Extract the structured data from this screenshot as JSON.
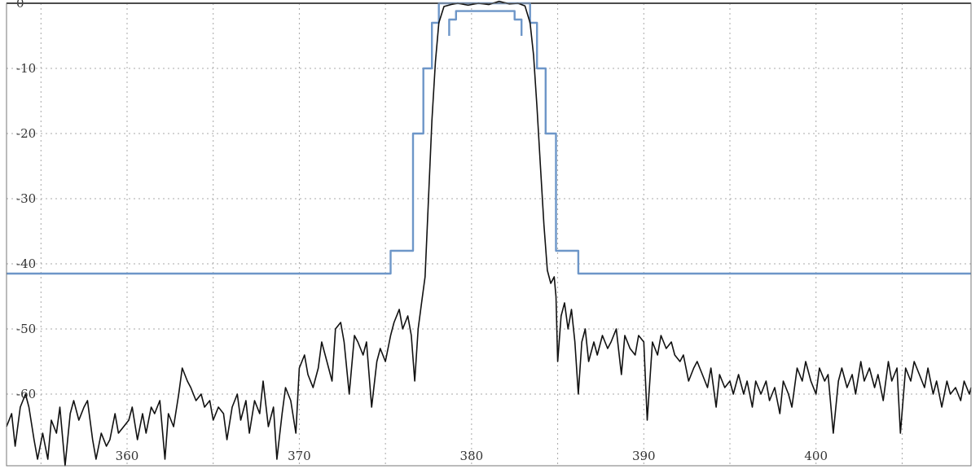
{
  "chart_data": {
    "type": "line",
    "title": "",
    "xlabel": "",
    "ylabel": "",
    "xlim": [
      353,
      409
    ],
    "ylim": [
      -71,
      0
    ],
    "grid": true,
    "legend": "none",
    "x_ticks": [
      {
        "value": 355,
        "label": ""
      },
      {
        "value": 360,
        "label": "360"
      },
      {
        "value": 365,
        "label": ""
      },
      {
        "value": 370,
        "label": "370"
      },
      {
        "value": 375,
        "label": ""
      },
      {
        "value": 380,
        "label": "380"
      },
      {
        "value": 385,
        "label": ""
      },
      {
        "value": 390,
        "label": "390"
      },
      {
        "value": 395,
        "label": ""
      },
      {
        "value": 400,
        "label": "400"
      },
      {
        "value": 405,
        "label": ""
      }
    ],
    "y_ticks": [
      {
        "value": 0,
        "label": "0"
      },
      {
        "value": -10,
        "label": "-10"
      },
      {
        "value": -20,
        "label": "-20"
      },
      {
        "value": -30,
        "label": "-30"
      },
      {
        "value": -40,
        "label": "-40"
      },
      {
        "value": -50,
        "label": "-50"
      },
      {
        "value": -60,
        "label": "-60"
      }
    ],
    "colors": {
      "spectrum": "#111111",
      "mask": "#6d96c8",
      "reference": "#222222"
    },
    "reference_line": {
      "y": 0
    },
    "series": [
      {
        "id": "mask-outer",
        "color": "#6d96c8",
        "step": true,
        "points": [
          [
            353,
            -41.5
          ],
          [
            375.3,
            -41.5
          ],
          [
            375.3,
            -38
          ],
          [
            376.6,
            -38
          ],
          [
            376.6,
            -20
          ],
          [
            377.2,
            -20
          ],
          [
            377.2,
            -10
          ],
          [
            377.7,
            -10
          ],
          [
            377.7,
            -3
          ],
          [
            378.1,
            -3
          ],
          [
            378.1,
            0
          ],
          [
            383.4,
            0
          ],
          [
            383.4,
            -3
          ],
          [
            383.8,
            -3
          ],
          [
            383.8,
            -10
          ],
          [
            384.3,
            -10
          ],
          [
            384.3,
            -20
          ],
          [
            384.9,
            -20
          ],
          [
            384.9,
            -38
          ],
          [
            386.2,
            -38
          ],
          [
            386.2,
            -41.5
          ],
          [
            409,
            -41.5
          ]
        ]
      },
      {
        "id": "mask-inner",
        "color": "#6d96c8",
        "step": true,
        "points": [
          [
            378.7,
            -5
          ],
          [
            378.7,
            -2.5
          ],
          [
            379.1,
            -2.5
          ],
          [
            379.1,
            -1.2
          ],
          [
            382.5,
            -1.2
          ],
          [
            382.5,
            -2.5
          ],
          [
            382.9,
            -2.5
          ],
          [
            382.9,
            -5
          ]
        ]
      },
      {
        "id": "spectrum",
        "color": "#111111",
        "points": [
          [
            353.0,
            -65
          ],
          [
            353.3,
            -63
          ],
          [
            353.5,
            -68
          ],
          [
            353.8,
            -62
          ],
          [
            354.1,
            -60
          ],
          [
            354.3,
            -62
          ],
          [
            354.6,
            -67
          ],
          [
            354.8,
            -70
          ],
          [
            355.1,
            -66
          ],
          [
            355.4,
            -70
          ],
          [
            355.6,
            -64
          ],
          [
            355.9,
            -66
          ],
          [
            356.1,
            -62
          ],
          [
            356.4,
            -71
          ],
          [
            356.7,
            -63
          ],
          [
            356.9,
            -61
          ],
          [
            357.2,
            -64
          ],
          [
            357.5,
            -62
          ],
          [
            357.7,
            -61
          ],
          [
            358.0,
            -67
          ],
          [
            358.2,
            -70
          ],
          [
            358.5,
            -66
          ],
          [
            358.8,
            -68
          ],
          [
            359.0,
            -67
          ],
          [
            359.3,
            -63
          ],
          [
            359.5,
            -66
          ],
          [
            359.8,
            -65
          ],
          [
            360.1,
            -64
          ],
          [
            360.3,
            -62
          ],
          [
            360.6,
            -67
          ],
          [
            360.9,
            -63
          ],
          [
            361.1,
            -66
          ],
          [
            361.4,
            -62
          ],
          [
            361.6,
            -63
          ],
          [
            361.9,
            -61
          ],
          [
            362.2,
            -70
          ],
          [
            362.4,
            -63
          ],
          [
            362.7,
            -65
          ],
          [
            363.0,
            -60
          ],
          [
            363.2,
            -56
          ],
          [
            363.5,
            -58
          ],
          [
            363.7,
            -59
          ],
          [
            364.0,
            -61
          ],
          [
            364.3,
            -60
          ],
          [
            364.5,
            -62
          ],
          [
            364.8,
            -61
          ],
          [
            365.0,
            -64
          ],
          [
            365.3,
            -62
          ],
          [
            365.6,
            -63
          ],
          [
            365.8,
            -67
          ],
          [
            366.1,
            -62
          ],
          [
            366.4,
            -60
          ],
          [
            366.6,
            -64
          ],
          [
            366.9,
            -61
          ],
          [
            367.1,
            -66
          ],
          [
            367.4,
            -61
          ],
          [
            367.7,
            -63
          ],
          [
            367.9,
            -58
          ],
          [
            368.2,
            -65
          ],
          [
            368.5,
            -62
          ],
          [
            368.7,
            -70
          ],
          [
            369.0,
            -63
          ],
          [
            369.2,
            -59
          ],
          [
            369.5,
            -61
          ],
          [
            369.8,
            -66
          ],
          [
            370.0,
            -56
          ],
          [
            370.3,
            -54
          ],
          [
            370.5,
            -57
          ],
          [
            370.8,
            -59
          ],
          [
            371.1,
            -56
          ],
          [
            371.3,
            -52
          ],
          [
            371.6,
            -55
          ],
          [
            371.9,
            -58
          ],
          [
            372.1,
            -50
          ],
          [
            372.4,
            -49
          ],
          [
            372.6,
            -52
          ],
          [
            372.9,
            -60
          ],
          [
            373.2,
            -51
          ],
          [
            373.4,
            -52
          ],
          [
            373.7,
            -54
          ],
          [
            373.9,
            -52
          ],
          [
            374.2,
            -62
          ],
          [
            374.5,
            -55
          ],
          [
            374.7,
            -53
          ],
          [
            375.0,
            -55
          ],
          [
            375.3,
            -51
          ],
          [
            375.5,
            -49
          ],
          [
            375.8,
            -47
          ],
          [
            376.0,
            -50
          ],
          [
            376.3,
            -48
          ],
          [
            376.5,
            -51
          ],
          [
            376.7,
            -58
          ],
          [
            376.9,
            -50
          ],
          [
            377.1,
            -46
          ],
          [
            377.3,
            -42
          ],
          [
            377.5,
            -30
          ],
          [
            377.7,
            -18
          ],
          [
            377.9,
            -9
          ],
          [
            378.1,
            -3
          ],
          [
            378.4,
            -0.5
          ],
          [
            378.8,
            -0.2
          ],
          [
            379.2,
            0
          ],
          [
            379.8,
            -0.3
          ],
          [
            380.4,
            0
          ],
          [
            381.0,
            -0.2
          ],
          [
            381.6,
            0.3
          ],
          [
            382.2,
            -0.1
          ],
          [
            382.7,
            0
          ],
          [
            383.1,
            -0.4
          ],
          [
            383.4,
            -3
          ],
          [
            383.6,
            -8
          ],
          [
            383.8,
            -16
          ],
          [
            384.0,
            -25
          ],
          [
            384.2,
            -34
          ],
          [
            384.4,
            -41
          ],
          [
            384.6,
            -43
          ],
          [
            384.8,
            -42
          ],
          [
            384.9,
            -45
          ],
          [
            385.0,
            -55
          ],
          [
            385.2,
            -48
          ],
          [
            385.4,
            -46
          ],
          [
            385.6,
            -50
          ],
          [
            385.8,
            -47
          ],
          [
            386.0,
            -52
          ],
          [
            386.2,
            -60
          ],
          [
            386.4,
            -52
          ],
          [
            386.6,
            -50
          ],
          [
            386.8,
            -55
          ],
          [
            387.1,
            -52
          ],
          [
            387.3,
            -54
          ],
          [
            387.6,
            -51
          ],
          [
            387.9,
            -53
          ],
          [
            388.1,
            -52
          ],
          [
            388.4,
            -50
          ],
          [
            388.7,
            -57
          ],
          [
            388.9,
            -51
          ],
          [
            389.2,
            -53
          ],
          [
            389.5,
            -54
          ],
          [
            389.7,
            -51
          ],
          [
            390.0,
            -52
          ],
          [
            390.2,
            -64
          ],
          [
            390.5,
            -52
          ],
          [
            390.8,
            -54
          ],
          [
            391.0,
            -51
          ],
          [
            391.3,
            -53
          ],
          [
            391.6,
            -52
          ],
          [
            391.8,
            -54
          ],
          [
            392.1,
            -55
          ],
          [
            392.3,
            -54
          ],
          [
            392.6,
            -58
          ],
          [
            392.9,
            -56
          ],
          [
            393.1,
            -55
          ],
          [
            393.4,
            -57
          ],
          [
            393.7,
            -59
          ],
          [
            393.9,
            -56
          ],
          [
            394.2,
            -62
          ],
          [
            394.4,
            -57
          ],
          [
            394.7,
            -59
          ],
          [
            395.0,
            -58
          ],
          [
            395.2,
            -60
          ],
          [
            395.5,
            -57
          ],
          [
            395.8,
            -60
          ],
          [
            396.0,
            -58
          ],
          [
            396.3,
            -62
          ],
          [
            396.5,
            -58
          ],
          [
            396.8,
            -60
          ],
          [
            397.1,
            -58
          ],
          [
            397.3,
            -61
          ],
          [
            397.6,
            -59
          ],
          [
            397.9,
            -63
          ],
          [
            398.1,
            -58
          ],
          [
            398.4,
            -60
          ],
          [
            398.6,
            -62
          ],
          [
            398.9,
            -56
          ],
          [
            399.2,
            -58
          ],
          [
            399.4,
            -55
          ],
          [
            399.7,
            -58
          ],
          [
            400.0,
            -60
          ],
          [
            400.2,
            -56
          ],
          [
            400.5,
            -58
          ],
          [
            400.7,
            -57
          ],
          [
            401.0,
            -66
          ],
          [
            401.3,
            -58
          ],
          [
            401.5,
            -56
          ],
          [
            401.8,
            -59
          ],
          [
            402.1,
            -57
          ],
          [
            402.3,
            -60
          ],
          [
            402.6,
            -55
          ],
          [
            402.8,
            -58
          ],
          [
            403.1,
            -56
          ],
          [
            403.4,
            -59
          ],
          [
            403.6,
            -57
          ],
          [
            403.9,
            -61
          ],
          [
            404.2,
            -55
          ],
          [
            404.4,
            -58
          ],
          [
            404.7,
            -56
          ],
          [
            404.9,
            -66
          ],
          [
            405.2,
            -56
          ],
          [
            405.5,
            -58
          ],
          [
            405.7,
            -55
          ],
          [
            406.0,
            -57
          ],
          [
            406.3,
            -59
          ],
          [
            406.5,
            -56
          ],
          [
            406.8,
            -60
          ],
          [
            407.0,
            -58
          ],
          [
            407.3,
            -62
          ],
          [
            407.6,
            -58
          ],
          [
            407.8,
            -60
          ],
          [
            408.1,
            -59
          ],
          [
            408.4,
            -61
          ],
          [
            408.6,
            -58
          ],
          [
            408.9,
            -60
          ],
          [
            409.0,
            -59
          ]
        ]
      }
    ]
  }
}
